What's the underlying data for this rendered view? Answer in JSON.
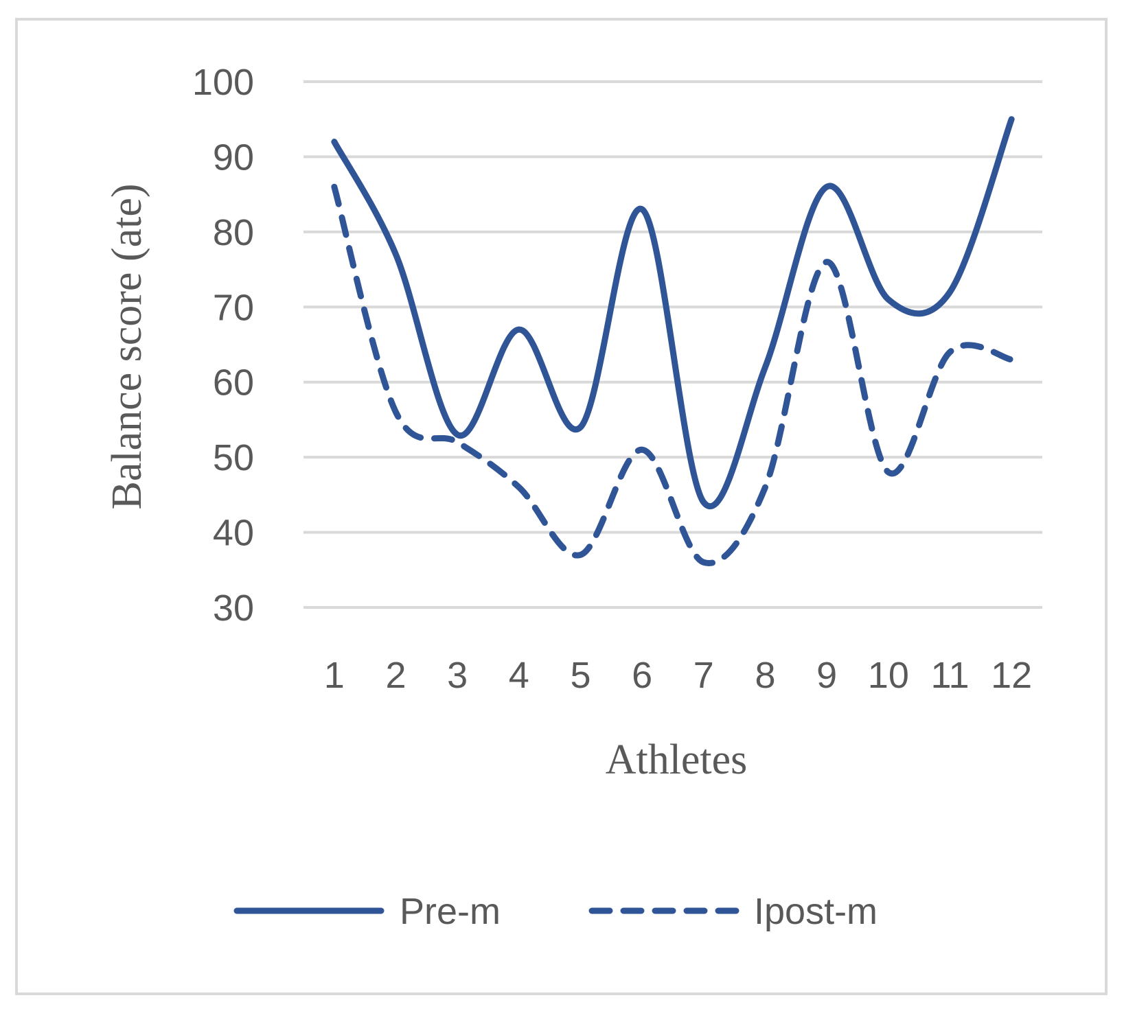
{
  "chart_data": {
    "type": "line",
    "smooth": true,
    "categories": [
      "1",
      "2",
      "3",
      "4",
      "5",
      "6",
      "7",
      "8",
      "9",
      "10",
      "11",
      "12"
    ],
    "series": [
      {
        "name": "Pre-m",
        "style": "solid",
        "color": "#2f5597",
        "values": [
          92,
          77,
          53,
          67,
          54,
          83,
          44,
          62,
          86,
          71,
          72,
          95
        ]
      },
      {
        "name": "Ipost-m",
        "style": "dashed",
        "color": "#2f5597",
        "values": [
          86,
          56,
          52,
          46,
          37,
          51,
          36,
          46,
          76,
          48,
          64,
          63
        ]
      }
    ],
    "xlabel": "Athletes",
    "ylabel": "Balance score (ate)",
    "ylim": [
      30,
      100
    ],
    "yticks": [
      "30",
      "40",
      "50",
      "60",
      "70",
      "80",
      "90",
      "100"
    ],
    "grid": true,
    "legend_position": "bottom"
  }
}
